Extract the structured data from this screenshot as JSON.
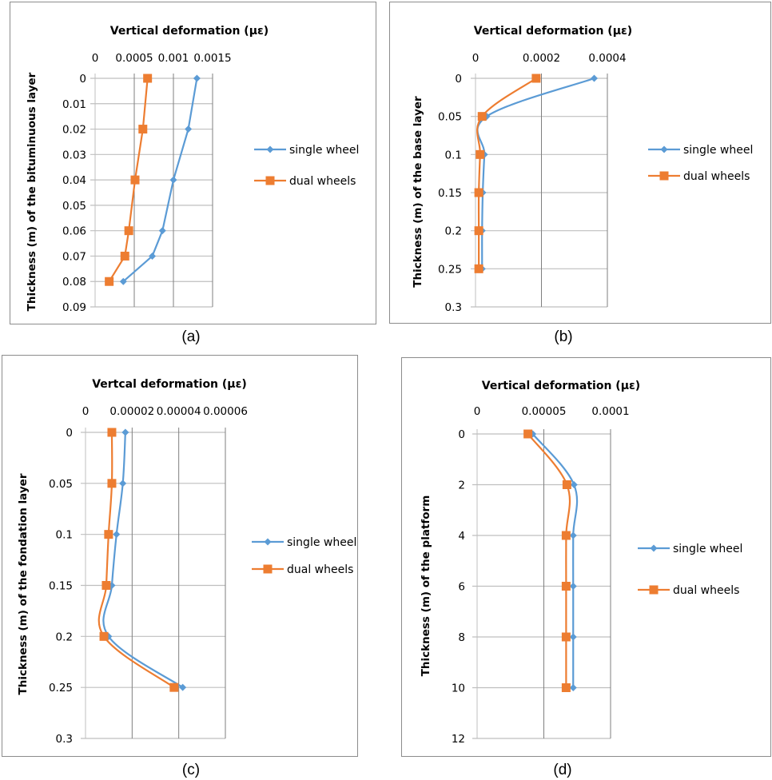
{
  "captions": [
    "(a)",
    "(b)",
    "(c)",
    "(d)"
  ],
  "colors": {
    "single": "#5b9bd5",
    "dual": "#ed7d31",
    "grid_major": "#7f7f7f",
    "grid_minor": "#bfbfbf"
  },
  "chart_data": [
    {
      "id": "a",
      "type": "line",
      "orientation": "vertical-profile",
      "title": "Vertical deformation  (με)",
      "xlabel": "Vertical deformation  (με)",
      "ylabel": "Thickness (m) of the bituminuous layer",
      "xlim": [
        0,
        0.0015
      ],
      "xticks": [
        "0",
        "0.0005",
        "0.001",
        "0.0015"
      ],
      "xtick_values": [
        0,
        0.0005,
        0.001,
        0.0015
      ],
      "ylim": [
        0,
        0.09
      ],
      "yticks": [
        "0",
        "0.01",
        "0.02",
        "0.03",
        "0.04",
        "0.05",
        "0.06",
        "0.07",
        "0.08",
        "0.09"
      ],
      "ytick_values": [
        0,
        0.01,
        0.02,
        0.03,
        0.04,
        0.05,
        0.06,
        0.07,
        0.08,
        0.09
      ],
      "y_inverted": true,
      "grid": true,
      "smooth": false,
      "legend_position": "right",
      "series": [
        {
          "name": "single wheel",
          "marker": "diamond",
          "y": [
            0,
            0.02,
            0.04,
            0.06,
            0.07,
            0.08
          ],
          "x": [
            0.0013,
            0.00119,
            0.001,
            0.00086,
            0.00073,
            0.00036
          ]
        },
        {
          "name": "dual wheels",
          "marker": "square",
          "y": [
            0,
            0.02,
            0.04,
            0.06,
            0.07,
            0.08
          ],
          "x": [
            0.00067,
            0.00061,
            0.00051,
            0.00043,
            0.00038,
            0.00018
          ]
        }
      ]
    },
    {
      "id": "b",
      "type": "line",
      "orientation": "vertical-profile",
      "title": "Vertical deformation (με)",
      "xlabel": "Vertical deformation (με)",
      "ylabel": "Thickness (m) of the base layer",
      "xlim": [
        0,
        0.0004
      ],
      "xticks": [
        "0",
        "0.0002",
        "0.0004"
      ],
      "xtick_values": [
        0,
        0.0002,
        0.0004
      ],
      "ylim": [
        0,
        0.3
      ],
      "yticks": [
        "0",
        "0.05",
        "0.1",
        "0.15",
        "0.2",
        "0.25",
        "0.3"
      ],
      "ytick_values": [
        0,
        0.05,
        0.1,
        0.15,
        0.2,
        0.25,
        0.3
      ],
      "y_inverted": true,
      "grid": true,
      "smooth": true,
      "legend_position": "right",
      "series": [
        {
          "name": "single wheel",
          "marker": "diamond",
          "y": [
            0,
            0.05,
            0.1,
            0.15,
            0.2,
            0.25
          ],
          "x": [
            0.00036,
            3.4e-05,
            2.7e-05,
            2.2e-05,
            2e-05,
            2e-05
          ]
        },
        {
          "name": "dual wheels",
          "marker": "square",
          "y": [
            0,
            0.05,
            0.1,
            0.15,
            0.2,
            0.25
          ],
          "x": [
            0.000184,
            2e-05,
            1.4e-05,
            1e-05,
            1e-05,
            1e-05
          ]
        }
      ]
    },
    {
      "id": "c",
      "type": "line",
      "orientation": "vertical-profile",
      "title": "Vertcal deformation (με)",
      "xlabel": "Vertcal deformation (με)",
      "ylabel": "Thickness (m) of the fondation layer",
      "xlim": [
        0,
        6e-05
      ],
      "xticks": [
        "0",
        "0.00002",
        "0.00004",
        "0.00006"
      ],
      "xtick_values": [
        0,
        2e-05,
        4e-05,
        6e-05
      ],
      "ylim": [
        0,
        0.3
      ],
      "yticks": [
        "0",
        "0.05",
        "0.1",
        "0.15",
        "0.2",
        "0.25",
        "0.3"
      ],
      "ytick_values": [
        0,
        0.05,
        0.1,
        0.15,
        0.2,
        0.25,
        0.3
      ],
      "y_inverted": true,
      "grid": true,
      "smooth": true,
      "legend_position": "right",
      "series": [
        {
          "name": "single wheel",
          "marker": "diamond",
          "y": [
            0,
            0.05,
            0.1,
            0.15,
            0.2,
            0.25
          ],
          "x": [
            1.71e-05,
            1.6e-05,
            1.33e-05,
            1.13e-05,
            9.9e-06,
            4.17e-05
          ]
        },
        {
          "name": "dual wheels",
          "marker": "square",
          "y": [
            0,
            0.05,
            0.1,
            0.15,
            0.2,
            0.25
          ],
          "x": [
            1.13e-05,
            1.13e-05,
            9.9e-06,
            8.9e-06,
            7.9e-06,
            3.8e-05
          ]
        }
      ]
    },
    {
      "id": "d",
      "type": "line",
      "orientation": "vertical-profile",
      "title": "Vertical deformation (με)",
      "xlabel": "Vertical deformation (με)",
      "ylabel": "Thickness (m) of the platform",
      "xlim": [
        0,
        0.0001
      ],
      "xticks": [
        "0",
        "0.00005",
        "0.0001"
      ],
      "xtick_values": [
        0,
        5e-05,
        0.0001
      ],
      "ylim": [
        0,
        12
      ],
      "yticks": [
        "0",
        "2",
        "4",
        "6",
        "8",
        "10",
        "12"
      ],
      "ytick_values": [
        0,
        2,
        4,
        6,
        8,
        10,
        12
      ],
      "y_inverted": true,
      "grid": true,
      "smooth": true,
      "legend_position": "right",
      "series": [
        {
          "name": "single wheel",
          "marker": "diamond",
          "y": [
            0,
            2,
            4,
            6,
            8,
            10
          ],
          "x": [
            4.17e-05,
            7.26e-05,
            7.2e-05,
            7.2e-05,
            7.2e-05,
            7.2e-05
          ]
        },
        {
          "name": "dual wheels",
          "marker": "square",
          "y": [
            0,
            2,
            4,
            6,
            8,
            10
          ],
          "x": [
            3.81e-05,
            6.73e-05,
            6.67e-05,
            6.67e-05,
            6.67e-05,
            6.67e-05
          ]
        }
      ]
    }
  ]
}
